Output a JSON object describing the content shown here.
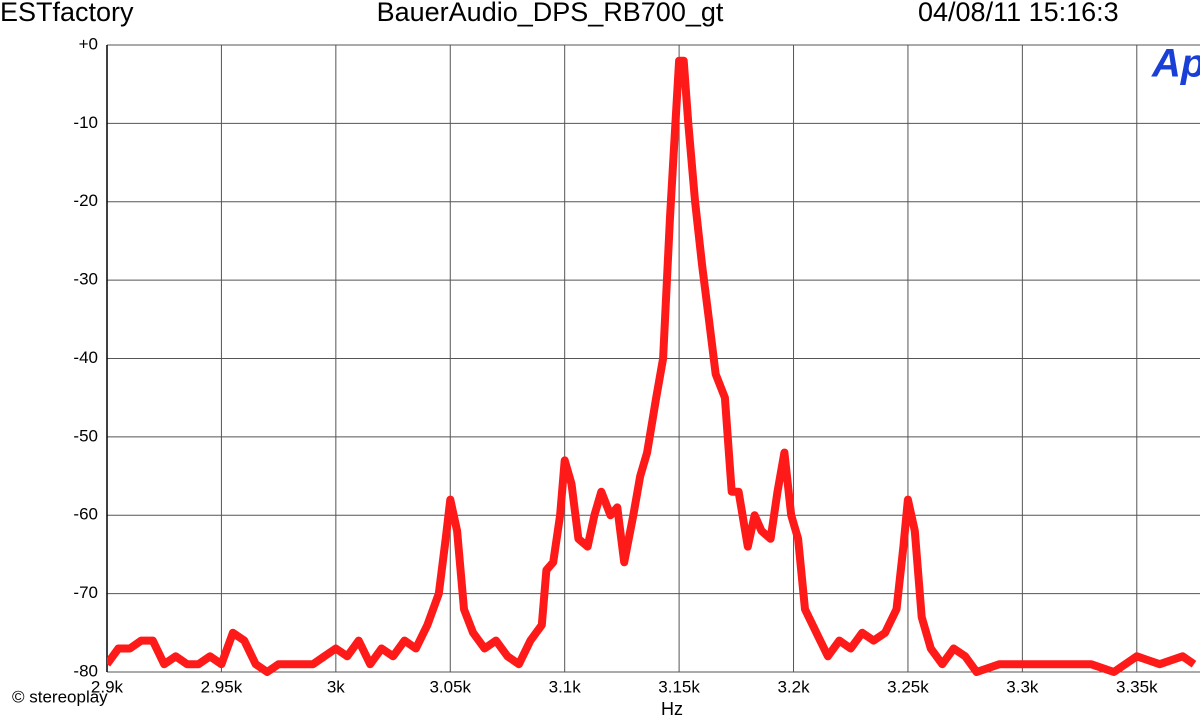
{
  "chart_data": {
    "type": "line",
    "header_left": "ESTfactory",
    "title": "BauerAudio_DPS_RB700_gt",
    "header_right": "04/08/11 15:16:3",
    "logo": "Ap",
    "copyright": "© stereoplay",
    "xlabel": "Hz",
    "xlim": [
      2900,
      3375
    ],
    "ylim": [
      -80,
      0
    ],
    "xticks": [
      {
        "value": 2900,
        "label": "2.9k"
      },
      {
        "value": 2950,
        "label": "2.95k"
      },
      {
        "value": 3000,
        "label": "3k"
      },
      {
        "value": 3050,
        "label": "3.05k"
      },
      {
        "value": 3100,
        "label": "3.1k"
      },
      {
        "value": 3150,
        "label": "3.15k"
      },
      {
        "value": 3200,
        "label": "3.2k"
      },
      {
        "value": 3250,
        "label": "3.25k"
      },
      {
        "value": 3300,
        "label": "3.3k"
      },
      {
        "value": 3350,
        "label": "3.35k"
      }
    ],
    "yticks": [
      {
        "value": 0,
        "label": "+0"
      },
      -10,
      -20,
      -30,
      -40,
      -50,
      -60,
      -70,
      -80
    ],
    "grid": true,
    "x": [
      2900,
      2905,
      2910,
      2915,
      2920,
      2925,
      2930,
      2935,
      2940,
      2945,
      2950,
      2955,
      2960,
      2965,
      2970,
      2975,
      2990,
      2995,
      3000,
      3005,
      3010,
      3015,
      3020,
      3025,
      3030,
      3035,
      3040,
      3045,
      3048,
      3050,
      3053,
      3056,
      3060,
      3065,
      3070,
      3075,
      3080,
      3085,
      3090,
      3092,
      3095,
      3098,
      3100,
      3103,
      3106,
      3110,
      3113,
      3116,
      3120,
      3123,
      3126,
      3130,
      3133,
      3136,
      3140,
      3143,
      3146,
      3148,
      3150,
      3152,
      3154,
      3157,
      3160,
      3163,
      3166,
      3170,
      3173,
      3176,
      3180,
      3183,
      3186,
      3190,
      3193,
      3196,
      3199,
      3202,
      3205,
      3210,
      3215,
      3220,
      3225,
      3230,
      3235,
      3240,
      3245,
      3248,
      3250,
      3253,
      3256,
      3260,
      3265,
      3270,
      3275,
      3280,
      3290,
      3300,
      3310,
      3320,
      3330,
      3340,
      3350,
      3360,
      3370,
      3375
    ],
    "series": [
      {
        "name": "spectrum",
        "color": "#ff1a1a",
        "values": [
          -79,
          -77,
          -77,
          -76,
          -76,
          -79,
          -78,
          -79,
          -79,
          -78,
          -79,
          -75,
          -76,
          -79,
          -80,
          -79,
          -79,
          -78,
          -77,
          -78,
          -76,
          -79,
          -77,
          -78,
          -76,
          -77,
          -74,
          -70,
          -63,
          -58,
          -62,
          -72,
          -75,
          -77,
          -76,
          -78,
          -79,
          -76,
          -74,
          -67,
          -66,
          -60,
          -53,
          -56,
          -63,
          -64,
          -60,
          -57,
          -60,
          -59,
          -66,
          -60,
          -55,
          -52,
          -45,
          -40,
          -22,
          -12,
          -2,
          -2,
          -10,
          -20,
          -28,
          -35,
          -42,
          -45,
          -57,
          -57,
          -64,
          -60,
          -62,
          -63,
          -57,
          -52,
          -60,
          -63,
          -72,
          -75,
          -78,
          -76,
          -77,
          -75,
          -76,
          -75,
          -72,
          -64,
          -58,
          -62,
          -73,
          -77,
          -79,
          -77,
          -78,
          -80,
          -79,
          -79,
          -79,
          -79,
          -79,
          -80,
          -78,
          -79,
          -78,
          -79
        ]
      }
    ]
  }
}
